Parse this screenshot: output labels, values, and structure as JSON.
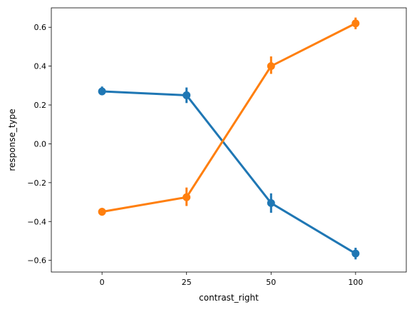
{
  "chart_data": {
    "type": "line",
    "title": "",
    "xlabel": "contrast_right",
    "ylabel": "response_type",
    "categories": [
      "0",
      "25",
      "50",
      "100"
    ],
    "ylim": [
      -0.66,
      0.7
    ],
    "yticks": [
      "−0.6",
      "−0.4",
      "−0.2",
      "0.0",
      "0.2",
      "0.4",
      "0.6"
    ],
    "ytick_values": [
      -0.6,
      -0.4,
      -0.2,
      0.0,
      0.2,
      0.4,
      0.6
    ],
    "grid": false,
    "series": [
      {
        "color": "#1f77b4",
        "values": [
          0.27,
          0.25,
          -0.305,
          -0.565
        ],
        "err_low": [
          0.25,
          0.21,
          -0.355,
          -0.595
        ],
        "err_high": [
          0.295,
          0.29,
          -0.255,
          -0.535
        ]
      },
      {
        "color": "#ff7f0e",
        "values": [
          -0.35,
          -0.275,
          0.4,
          0.62
        ],
        "err_low": [
          -0.37,
          -0.32,
          0.36,
          0.59
        ],
        "err_high": [
          -0.33,
          -0.225,
          0.45,
          0.65
        ]
      }
    ]
  }
}
